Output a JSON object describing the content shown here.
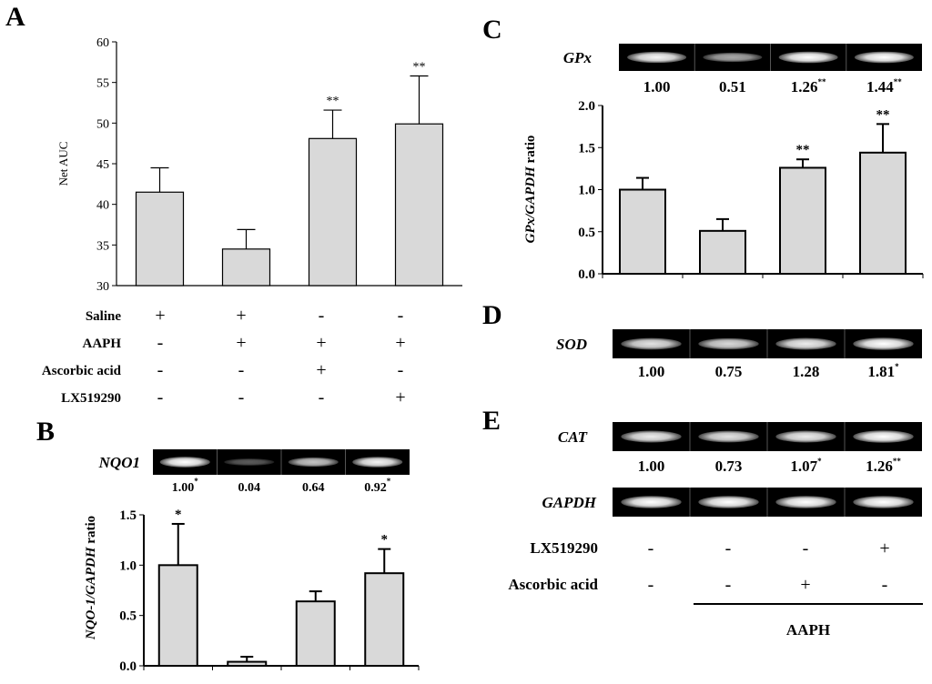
{
  "panels": {
    "A": {
      "letter": "A"
    },
    "B": {
      "letter": "B"
    },
    "C": {
      "letter": "C"
    },
    "D": {
      "letter": "D"
    },
    "E": {
      "letter": "E"
    }
  },
  "chart_data": [
    {
      "id": "A",
      "type": "bar",
      "ylabel": "Net AUC",
      "ylim": [
        30,
        60
      ],
      "yticks": [
        "30",
        "35",
        "40",
        "45",
        "50",
        "55",
        "60"
      ],
      "values": [
        41.5,
        34.5,
        48.1,
        49.9
      ],
      "errors": [
        3.0,
        2.4,
        3.5,
        5.9
      ],
      "stars": [
        "",
        "",
        "**",
        "**"
      ],
      "bar_color": "#d9d9d9",
      "treatment_rows": [
        {
          "label": "Saline",
          "signs": [
            "+",
            "+",
            "-",
            "-"
          ]
        },
        {
          "label": "AAPH",
          "signs": [
            "-",
            "+",
            "+",
            "+"
          ]
        },
        {
          "label": "Ascorbic acid",
          "signs": [
            "-",
            "-",
            "+",
            "-"
          ]
        },
        {
          "label": "LX519290",
          "signs": [
            "-",
            "-",
            "-",
            "+"
          ]
        }
      ]
    },
    {
      "id": "B",
      "type": "bar",
      "gene": "NQO1",
      "ylabel_italic": "NQO-1/GAPDH",
      "ylabel_rest": " ratio",
      "ylim": [
        0,
        1.5
      ],
      "yticks": [
        "0.0",
        "0.5",
        "1.0",
        "1.5"
      ],
      "values": [
        1.0,
        0.04,
        0.64,
        0.92
      ],
      "errors": [
        0.41,
        0.05,
        0.1,
        0.24
      ],
      "stars": [
        "*",
        "",
        "",
        "*"
      ],
      "band_labels": [
        {
          "value": "1.00",
          "sup": "*"
        },
        {
          "value": "0.04",
          "sup": ""
        },
        {
          "value": "0.64",
          "sup": ""
        },
        {
          "value": "0.92",
          "sup": "*"
        }
      ],
      "band_intensity": [
        1.0,
        0.15,
        0.7,
        0.95
      ],
      "bar_color": "#d9d9d9"
    },
    {
      "id": "C",
      "type": "bar",
      "gene": "GPx",
      "ylabel_italic": "GPx/GAPDH",
      "ylabel_rest": " ratio",
      "ylim": [
        0,
        2.0
      ],
      "yticks": [
        "0.0",
        "0.5",
        "1.0",
        "1.5",
        "2.0"
      ],
      "values": [
        1.0,
        0.51,
        1.26,
        1.44
      ],
      "errors": [
        0.14,
        0.14,
        0.1,
        0.34
      ],
      "stars": [
        "",
        "",
        "**",
        "**"
      ],
      "band_labels": [
        {
          "value": "1.00",
          "sup": ""
        },
        {
          "value": "0.51",
          "sup": ""
        },
        {
          "value": "1.26",
          "sup": "**"
        },
        {
          "value": "1.44",
          "sup": "**"
        }
      ],
      "band_intensity": [
        0.95,
        0.55,
        1.0,
        1.0
      ],
      "bar_color": "#d9d9d9"
    }
  ],
  "gels": {
    "D": {
      "gene": "SOD",
      "band_labels": [
        {
          "value": "1.00",
          "sup": ""
        },
        {
          "value": "0.75",
          "sup": ""
        },
        {
          "value": "1.28",
          "sup": ""
        },
        {
          "value": "1.81",
          "sup": "*"
        }
      ],
      "band_intensity": [
        0.85,
        0.8,
        0.9,
        1.0
      ]
    },
    "E_CAT": {
      "gene": "CAT",
      "band_labels": [
        {
          "value": "1.00",
          "sup": ""
        },
        {
          "value": "0.73",
          "sup": ""
        },
        {
          "value": "1.07",
          "sup": "*"
        },
        {
          "value": "1.26",
          "sup": "**"
        }
      ],
      "band_intensity": [
        0.9,
        0.85,
        0.9,
        1.0
      ]
    },
    "E_GAPDH": {
      "gene": "GAPDH",
      "band_intensity": [
        1.0,
        1.0,
        1.0,
        1.0
      ]
    }
  },
  "conditions_E": [
    {
      "label": "LX519290",
      "signs": [
        "-",
        "-",
        "-",
        "+"
      ]
    },
    {
      "label": "Ascorbic acid",
      "signs": [
        "-",
        "-",
        "+",
        "-"
      ]
    }
  ],
  "aaph_label": "AAPH"
}
